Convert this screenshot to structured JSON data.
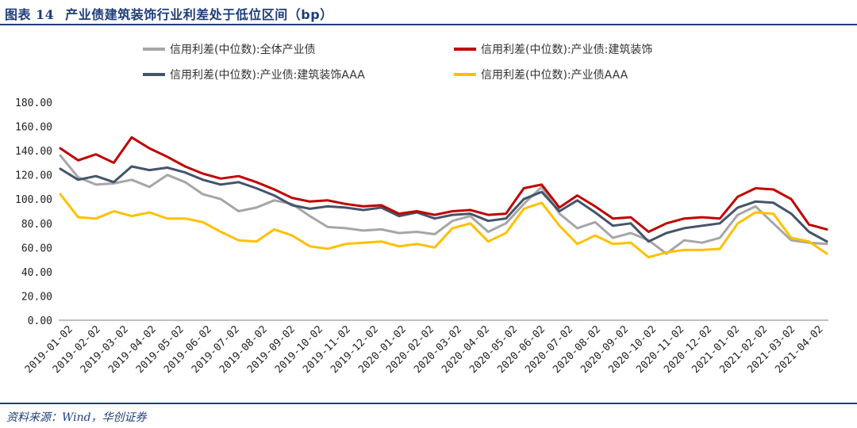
{
  "header": {
    "label": "图表",
    "number": "14",
    "title": "产业债建筑装饰行业利差处于低位区间（bp）"
  },
  "footer": {
    "source": "资料来源：Wind，华创证券"
  },
  "chart_data": {
    "type": "line",
    "y_range": [
      0,
      180
    ],
    "y_ticks": [
      "0.00",
      "20.00",
      "40.00",
      "60.00",
      "80.00",
      "100.00",
      "120.00",
      "140.00",
      "160.00",
      "180.00"
    ],
    "x_tick_labels": [
      "2019-01-02",
      "2019-02-02",
      "2019-03-02",
      "2019-04-02",
      "2019-05-02",
      "2019-06-02",
      "2019-07-02",
      "2019-08-02",
      "2019-09-02",
      "2019-10-02",
      "2019-11-02",
      "2019-12-02",
      "2020-01-02",
      "2020-02-02",
      "2020-03-02",
      "2020-04-02",
      "2020-05-02",
      "2020-06-02",
      "2020-07-02",
      "2020-08-02",
      "2020-09-02",
      "2020-10-02",
      "2020-11-02",
      "2020-12-02",
      "2021-01-02",
      "2021-02-02",
      "2021-03-02",
      "2021-04-02"
    ],
    "grid": false,
    "legend_position": "top",
    "series": [
      {
        "name": "信用利差(中位数):全体产业债",
        "color": "#a6a6a6",
        "values": [
          136,
          118,
          112,
          113,
          116,
          110,
          120,
          114,
          104,
          100,
          90,
          93,
          99,
          96,
          86,
          77,
          76,
          74,
          75,
          72,
          73,
          71,
          82,
          86,
          73,
          80,
          96,
          110,
          88,
          76,
          81,
          68,
          72,
          66,
          55,
          66,
          64,
          68,
          87,
          94,
          80,
          66,
          64,
          63
        ]
      },
      {
        "name": "信用利差(中位数):产业债:建筑装饰",
        "color": "#c00000",
        "values": [
          142,
          132,
          137,
          130,
          151,
          142,
          135,
          127,
          121,
          117,
          119,
          114,
          108,
          101,
          98,
          99,
          96,
          94,
          95,
          88,
          90,
          87,
          90,
          91,
          87,
          88,
          109,
          112,
          93,
          103,
          94,
          84,
          85,
          73,
          80,
          84,
          85,
          84,
          102,
          109,
          108,
          100,
          79,
          75
        ]
      },
      {
        "name": "信用利差(中位数):产业债:建筑装饰AAA",
        "color": "#44546a",
        "values": [
          125,
          116,
          119,
          114,
          127,
          124,
          126,
          122,
          116,
          112,
          114,
          109,
          103,
          95,
          92,
          94,
          93,
          91,
          93,
          86,
          89,
          84,
          87,
          88,
          82,
          84,
          100,
          106,
          90,
          99,
          89,
          78,
          80,
          65,
          72,
          76,
          78,
          80,
          93,
          98,
          97,
          88,
          73,
          65
        ]
      },
      {
        "name": "信用利差(中位数):产业债AAA",
        "color": "#ffc000",
        "values": [
          104,
          85,
          84,
          90,
          86,
          89,
          84,
          84,
          81,
          73,
          66,
          65,
          75,
          70,
          61,
          59,
          63,
          64,
          65,
          61,
          63,
          60,
          76,
          80,
          65,
          72,
          92,
          97,
          78,
          63,
          70,
          63,
          64,
          52,
          56,
          58,
          58,
          59,
          80,
          89,
          88,
          68,
          65,
          55
        ]
      }
    ]
  }
}
